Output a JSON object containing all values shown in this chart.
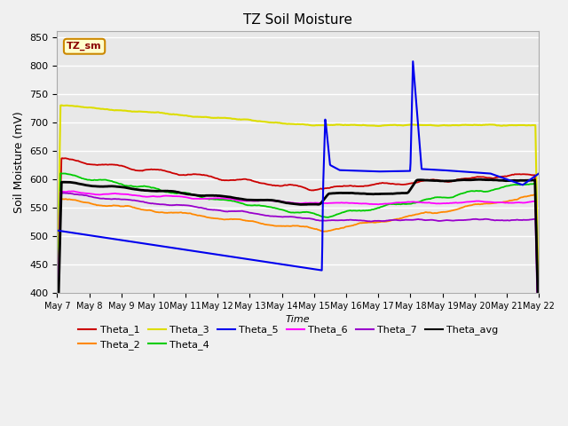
{
  "title": "TZ Soil Moisture",
  "xlabel": "Time",
  "ylabel": "Soil Moisture (mV)",
  "ylim": [
    400,
    860
  ],
  "yticks": [
    400,
    450,
    500,
    550,
    600,
    650,
    700,
    750,
    800,
    850
  ],
  "plot_bg_color": "#e8e8e8",
  "fig_bg_color": "#f0f0f0",
  "legend_label": "TZ_sm",
  "series": {
    "Theta_1": {
      "color": "#cc0000",
      "lw": 1.3
    },
    "Theta_2": {
      "color": "#ff8800",
      "lw": 1.3
    },
    "Theta_3": {
      "color": "#dddd00",
      "lw": 1.5
    },
    "Theta_4": {
      "color": "#00cc00",
      "lw": 1.3
    },
    "Theta_5": {
      "color": "#0000ee",
      "lw": 1.5
    },
    "Theta_6": {
      "color": "#ff00ff",
      "lw": 1.3
    },
    "Theta_7": {
      "color": "#9900cc",
      "lw": 1.3
    },
    "Theta_avg": {
      "color": "#000000",
      "lw": 2.0
    }
  },
  "day_labels": [
    "May 7",
    "May 8",
    "May 9",
    "May 10",
    "May 11",
    "May 12",
    "May 13",
    "May 14",
    "May 15",
    "May 16",
    "May 17",
    "May 18",
    "May 19",
    "May 20",
    "May 21",
    "May 22"
  ]
}
